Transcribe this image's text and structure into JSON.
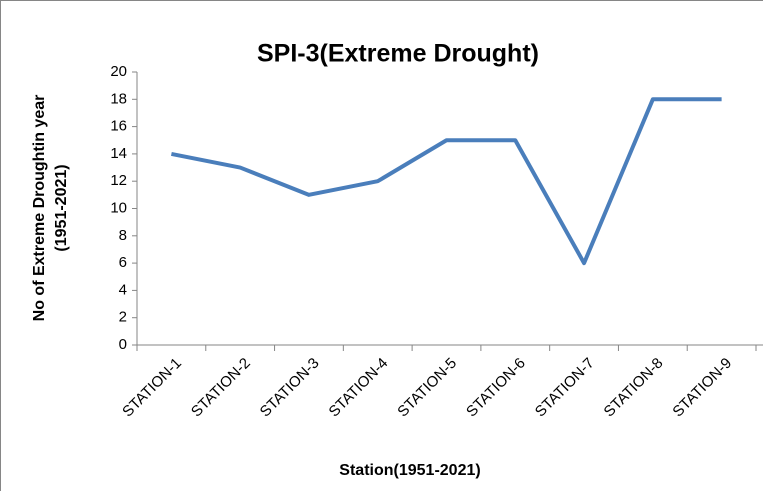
{
  "chart_data": {
    "type": "line",
    "title": "SPI-3(Extreme Drought)",
    "x_label": "Station(1951-2021)",
    "y_label": [
      "No of Extreme Droughtin year",
      "(1951-2021)"
    ],
    "categories": [
      "STATION-1",
      "STATION-2",
      "STATION-3",
      "STATION-4",
      "STATION-5",
      "STATION-6",
      "STATION-7",
      "STATION-8",
      "STATION-9"
    ],
    "values": [
      14,
      13,
      11,
      12,
      15,
      15,
      6,
      18,
      18
    ],
    "color": "#4a7ebb",
    "ylim": [
      0,
      20
    ],
    "yticks": [
      0,
      2,
      4,
      6,
      8,
      10,
      12,
      14,
      16,
      18,
      20
    ],
    "grid": false
  }
}
